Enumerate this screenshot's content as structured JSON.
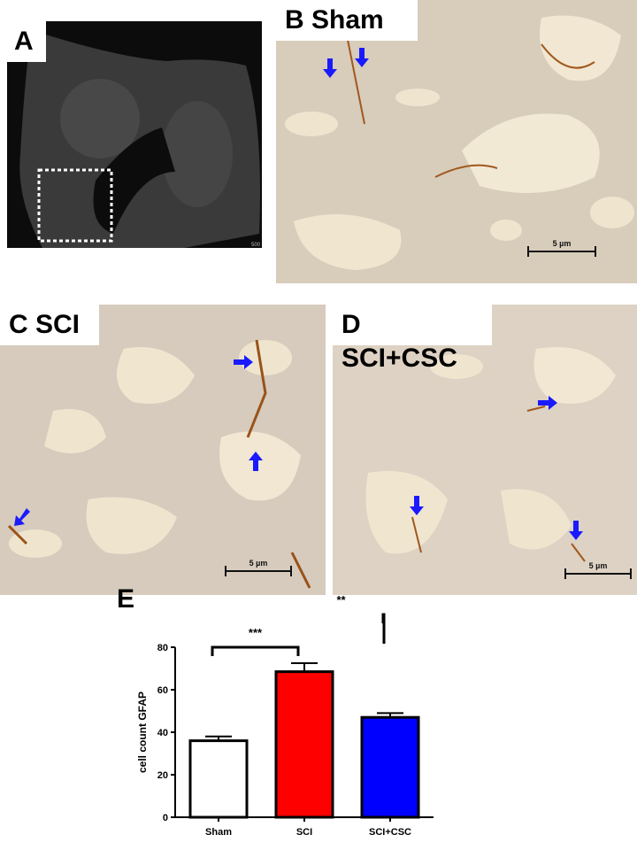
{
  "panels": {
    "a": {
      "label": "A",
      "scale_text": "500"
    },
    "b": {
      "label": "B Sham",
      "scale_text": "5 µm"
    },
    "c": {
      "label": "C SCI",
      "scale_text": "5 µm"
    },
    "d": {
      "label": "D SCI+CSC",
      "scale_text": "5 µm"
    },
    "e": {
      "label": "E"
    }
  },
  "colors": {
    "arrow": "#1a1aff",
    "tissue": "#d9cbb8",
    "stain": "#a0581e"
  },
  "chart_data": {
    "type": "bar",
    "categories": [
      "Sham",
      "SCI",
      "SCI+CSC"
    ],
    "values": [
      36,
      68.5,
      47
    ],
    "errors": [
      2,
      4,
      2
    ],
    "colors": [
      "#ffffff",
      "#ff0000",
      "#0000ff"
    ],
    "ylabel": "cell count GFAP",
    "xlabel": "",
    "ylim": [
      0,
      80
    ],
    "yticks": [
      0,
      20,
      40,
      60,
      80
    ],
    "grid": false,
    "significance": [
      {
        "from": "Sham",
        "to": "SCI",
        "label": "***"
      },
      {
        "from": "SCI",
        "to": "SCI+CSC",
        "label": "**"
      }
    ]
  }
}
